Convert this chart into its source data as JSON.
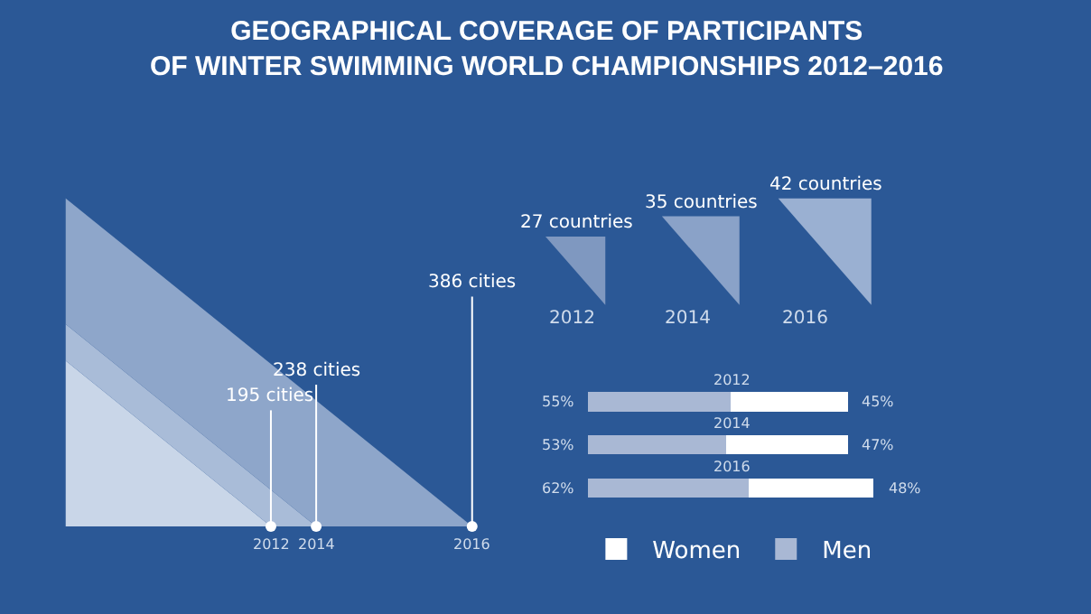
{
  "chart_data": [
    {
      "type": "other",
      "title": "GEOGRAPHICAL COVERAGE OF PARTICIPANTS\nOF WINTER SWIMMING WORLD CHAMPIONSHIPS 2012–2016",
      "categories": [
        "2012",
        "2014",
        "2016"
      ],
      "values": [
        195,
        238,
        386
      ],
      "value_labels": [
        "195 cities",
        "238 cities",
        "386 cities"
      ]
    },
    {
      "type": "other",
      "categories": [
        "2012",
        "2014",
        "2016"
      ],
      "values": [
        27,
        35,
        42
      ],
      "value_labels": [
        "27 countries",
        "35 countries",
        "42 countries"
      ],
      "colors": [
        "#7f98c0",
        "#8aa2c8",
        "#9ab0d2"
      ]
    },
    {
      "type": "bar",
      "orientation": "horizontal",
      "stacked": true,
      "categories": [
        "2012",
        "2014",
        "2016"
      ],
      "legend": "bottom",
      "series": [
        {
          "name": "Men",
          "color": "#a9b8d4",
          "values": [
            55,
            53,
            62
          ],
          "value_labels": [
            "55%",
            "53%",
            "62%"
          ]
        },
        {
          "name": "Women",
          "color": "#ffffff",
          "values": [
            45,
            47,
            48
          ],
          "value_labels": [
            "45%",
            "47%",
            "48%"
          ]
        }
      ]
    }
  ]
}
